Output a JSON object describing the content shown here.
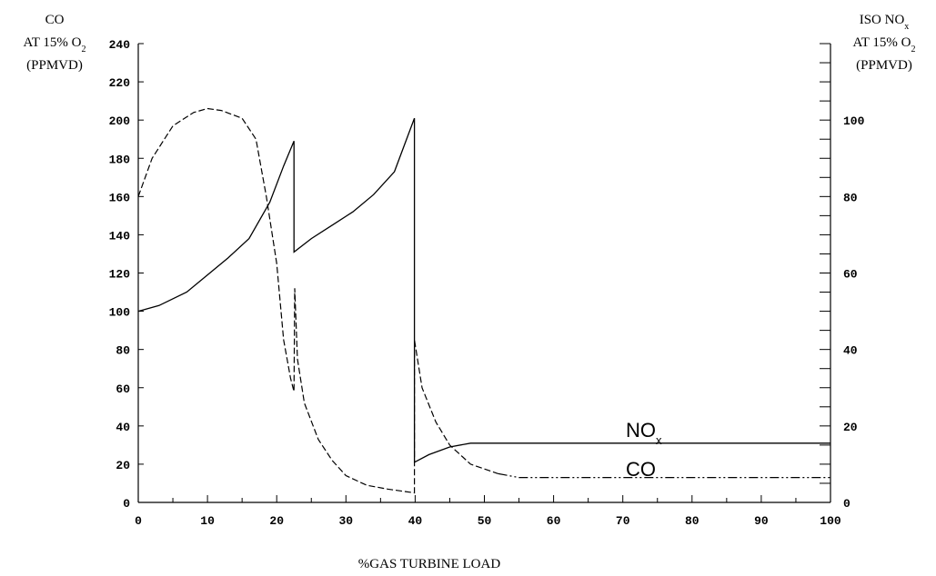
{
  "chart_data": {
    "type": "line",
    "xlabel": "%GAS TURBINE LOAD",
    "left_axis_label": [
      "CO",
      "AT 15% O2",
      "(PPMVD)"
    ],
    "right_axis_label": [
      "ISO NOx",
      "AT 15% O2",
      "(PPMVD)"
    ],
    "xlim": [
      0,
      100
    ],
    "ylim_left": [
      0,
      240
    ],
    "ylim_right": [
      0,
      120
    ],
    "x_ticks": [
      "0",
      "10",
      "20",
      "30",
      "40",
      "50",
      "60",
      "70",
      "80",
      "90",
      "100"
    ],
    "y_left_ticks": [
      "0",
      "20",
      "40",
      "60",
      "80",
      "100",
      "120",
      "140",
      "160",
      "180",
      "200",
      "220",
      "240"
    ],
    "y_right_ticks": [
      "0",
      "20",
      "40",
      "60",
      "80",
      "100"
    ],
    "grid": false,
    "series": [
      {
        "name": "NOx",
        "axis": "right",
        "line_style": "solid",
        "x": [
          0,
          3,
          7,
          10,
          13,
          16,
          19,
          21,
          22.5,
          22.5,
          25,
          28,
          31,
          34,
          37,
          39.9,
          39.9,
          42,
          45,
          48,
          60,
          80,
          100
        ],
        "y": [
          50,
          51.5,
          55,
          59.5,
          64,
          69,
          78.5,
          88,
          94.5,
          65.5,
          69,
          72.5,
          76,
          80.5,
          86.5,
          100.5,
          10.5,
          12.5,
          14.5,
          15.5,
          15.5,
          15.5,
          15.5
        ]
      },
      {
        "name": "CO",
        "axis": "left",
        "line_style": "dashed-then-dashdot",
        "x": [
          0,
          2,
          5,
          8,
          10,
          12,
          15,
          17,
          18.5,
          20,
          21,
          22,
          22.5,
          22.6,
          23,
          24,
          26,
          28,
          30,
          33,
          36,
          39.9,
          39.9,
          41,
          43,
          45,
          48,
          52,
          55,
          60,
          80,
          100
        ],
        "y": [
          160,
          180,
          197,
          204,
          206,
          205,
          201,
          190,
          160,
          125,
          85,
          65,
          58,
          112,
          75,
          52,
          33,
          22,
          14,
          9,
          7,
          5,
          85,
          60,
          42,
          30,
          20,
          15,
          13,
          13,
          13,
          13
        ]
      }
    ],
    "annotations": [
      "NOx",
      "CO"
    ]
  }
}
